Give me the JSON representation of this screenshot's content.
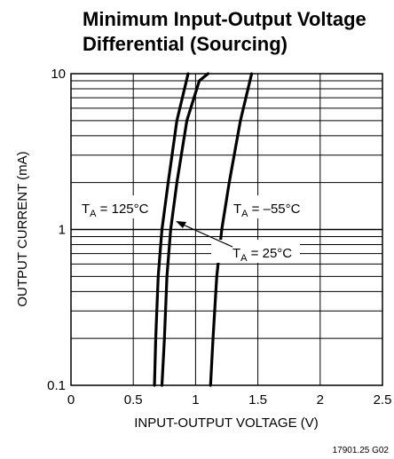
{
  "chart_data": {
    "type": "line",
    "title_line1": "Minimum Input-Output Voltage",
    "title_line2": "Differential (Sourcing)",
    "xlabel": "INPUT-OUTPUT VOLTAGE (V)",
    "ylabel": "OUTPUT CURRENT (mA)",
    "x_scale": "linear",
    "y_scale": "log",
    "xlim": [
      0,
      2.5
    ],
    "ylim": [
      0.1,
      10
    ],
    "x_ticks": [
      "0",
      "0.5",
      "1",
      "1.5",
      "2",
      "2.5"
    ],
    "y_ticks": [
      "0.1",
      "1",
      "10"
    ],
    "grid": true,
    "series": [
      {
        "name": "TA = 125°C",
        "label_main": "T",
        "label_sub": "A",
        "label_rest": " = 125°C",
        "points": [
          [
            0.67,
            0.1
          ],
          [
            0.68,
            0.2
          ],
          [
            0.7,
            0.5
          ],
          [
            0.73,
            1.0
          ],
          [
            0.78,
            2.0
          ],
          [
            0.85,
            5.0
          ],
          [
            0.94,
            10
          ]
        ]
      },
      {
        "name": "TA = 25°C",
        "label_main": "T",
        "label_sub": "A",
        "label_rest": " = 25°C",
        "points": [
          [
            0.73,
            0.1
          ],
          [
            0.75,
            0.2
          ],
          [
            0.77,
            0.5
          ],
          [
            0.8,
            1.0
          ],
          [
            0.85,
            2.0
          ],
          [
            0.93,
            5.0
          ],
          [
            1.03,
            9.0
          ],
          [
            1.1,
            10
          ]
        ]
      },
      {
        "name": "TA = –55°C",
        "label_main": "T",
        "label_sub": "A",
        "label_rest": " = –55°C",
        "points": [
          [
            1.12,
            0.1
          ],
          [
            1.14,
            0.2
          ],
          [
            1.17,
            0.5
          ],
          [
            1.21,
            1.0
          ],
          [
            1.27,
            2.0
          ],
          [
            1.36,
            5.0
          ],
          [
            1.45,
            10
          ]
        ]
      }
    ],
    "footnote": "17901.25 G02"
  }
}
